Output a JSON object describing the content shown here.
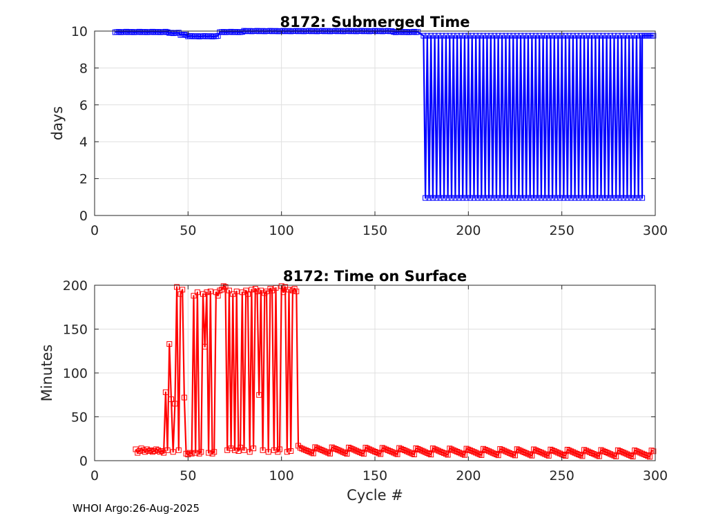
{
  "footer": "WHOI Argo:26-Aug-2025",
  "chart_data": [
    {
      "type": "line",
      "title": "8172: Submerged Time",
      "xlabel": "",
      "ylabel": "days",
      "xlim": [
        0,
        300
      ],
      "ylim": [
        0,
        10
      ],
      "xticks": [
        "0",
        "50",
        "100",
        "150",
        "200",
        "250",
        "300"
      ],
      "yticks": [
        "0",
        "2",
        "4",
        "6",
        "8",
        "10"
      ],
      "grid": true,
      "marker": "square",
      "color": "#0000ff",
      "series": [
        {
          "name": "Submerged Time",
          "segments": [
            {
              "x_start": 11,
              "x_end": 40,
              "value": 9.95
            },
            {
              "x_start": 40,
              "x_end": 46,
              "value": 9.9
            },
            {
              "x_start": 46,
              "x_end": 50,
              "value": 9.8
            },
            {
              "x_start": 50,
              "x_end": 67,
              "value": 9.72
            },
            {
              "x_start": 67,
              "x_end": 80,
              "value": 9.95
            },
            {
              "x_start": 80,
              "x_end": 160,
              "value": 10.0
            },
            {
              "x_start": 160,
              "x_end": 174,
              "value": 9.95
            }
          ],
          "alternating": {
            "x_start": 176,
            "x_end": 292,
            "step": 2,
            "high": 9.75,
            "low": 0.95,
            "missing_low": [
              232,
              234,
              236,
              238,
              240,
              258,
              260,
              280,
              282,
              286
            ]
          },
          "tail": [
            {
              "x": 293,
              "y": 9.75
            },
            {
              "x": 294,
              "y": 9.75
            },
            {
              "x": 295,
              "y": 9.75
            },
            {
              "x": 296,
              "y": 9.75
            },
            {
              "x": 297,
              "y": 9.75
            },
            {
              "x": 298,
              "y": 9.75
            },
            {
              "x": 299,
              "y": 9.75
            }
          ]
        }
      ]
    },
    {
      "type": "line",
      "title": "8172: Time on Surface",
      "xlabel": "Cycle #",
      "ylabel": "Minutes",
      "xlim": [
        0,
        300
      ],
      "ylim": [
        0,
        200
      ],
      "xticks": [
        "0",
        "50",
        "100",
        "150",
        "200",
        "250",
        "300"
      ],
      "yticks": [
        "0",
        "50",
        "100",
        "150",
        "200"
      ],
      "grid": true,
      "marker": "square",
      "color": "#ff0000",
      "series": [
        {
          "name": "Time on Surface",
          "x": [
            22,
            23,
            24,
            25,
            26,
            27,
            28,
            29,
            30,
            31,
            32,
            33,
            34,
            35,
            36,
            37,
            38,
            39,
            40,
            41,
            42,
            43,
            44,
            45,
            46,
            47,
            48,
            49,
            50,
            51,
            52,
            53,
            54,
            55,
            56,
            57,
            58,
            59,
            60,
            61,
            62,
            63,
            64,
            65,
            66,
            67,
            68,
            69,
            70,
            71,
            72,
            73,
            74,
            75,
            76,
            77,
            78,
            79,
            80,
            81,
            82,
            83,
            84,
            85,
            86,
            87,
            88,
            89,
            90,
            91,
            92,
            93,
            94,
            95,
            96,
            97,
            98,
            99,
            100,
            101,
            102,
            103,
            104,
            105,
            106,
            107,
            108,
            109
          ],
          "y": [
            13,
            9,
            11,
            14,
            12,
            10,
            13,
            11,
            12,
            10,
            11,
            13,
            12,
            10,
            11,
            9,
            78,
            12,
            133,
            70,
            10,
            65,
            198,
            12,
            190,
            195,
            72,
            8,
            7,
            9,
            8,
            188,
            9,
            192,
            8,
            10,
            190,
            130,
            192,
            9,
            193,
            8,
            10,
            192,
            188,
            194,
            195,
            199,
            198,
            12,
            194,
            14,
            190,
            12,
            193,
            11,
            15,
            192,
            12,
            194,
            190,
            10,
            195,
            14,
            196,
            193,
            75,
            194,
            12,
            191,
            193,
            10,
            196,
            194,
            12,
            197,
            10,
            13,
            199,
            192,
            198,
            10,
            195,
            11,
            194,
            196,
            193,
            17
          ],
          "tail": {
            "x_start": 110,
            "x_end": 299,
            "base": 12,
            "end": 8
          }
        }
      ]
    }
  ]
}
